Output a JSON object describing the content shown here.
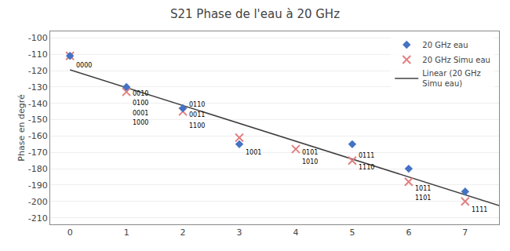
{
  "chart_data": {
    "type": "scatter",
    "title": "S21 Phase de l'eau à 20 GHz",
    "ylabel": "Phase en degré",
    "xlim": [
      -0.35,
      7.6
    ],
    "ylim": [
      -214,
      -96
    ],
    "xticks": [
      0,
      1,
      2,
      3,
      4,
      5,
      6,
      7
    ],
    "yticks": [
      -210,
      -200,
      -190,
      -180,
      -170,
      -160,
      -150,
      -140,
      -130,
      -120,
      -110,
      -100
    ],
    "grid": "y",
    "legend": "upper right",
    "series": [
      {
        "name": "20 GHz eau",
        "type": "scatter",
        "marker": "diamond",
        "color": "#4472c4",
        "x": [
          0,
          1,
          2,
          3,
          5,
          6,
          7
        ],
        "values": [
          -111,
          -130,
          -143,
          -165,
          -165,
          -180,
          -194
        ]
      },
      {
        "name": "20 GHz Simu eau",
        "type": "scatter",
        "marker": "x",
        "color": "#e08080",
        "x": [
          0,
          1,
          2,
          3,
          4,
          5,
          6,
          7
        ],
        "values": [
          -111,
          -133,
          -145,
          -161,
          -168,
          -175,
          -188,
          -200
        ]
      },
      {
        "name": "Linear (20 GHz\nSimu eau)",
        "type": "line",
        "color": "#404040",
        "x": [
          0,
          7.6
        ],
        "values": [
          -119.5,
          -202.5
        ]
      }
    ],
    "annotations": [
      {
        "text": "0000",
        "x": 0,
        "y": -117
      },
      {
        "text": "0010",
        "x": 1,
        "y": -134
      },
      {
        "text": "0100",
        "x": 1,
        "y": -140
      },
      {
        "text": "0001",
        "x": 1,
        "y": -146
      },
      {
        "text": "1000",
        "x": 1,
        "y": -152
      },
      {
        "text": "0110",
        "x": 2,
        "y": -141
      },
      {
        "text": "0011",
        "x": 2,
        "y": -147
      },
      {
        "text": "1100",
        "x": 2,
        "y": -154
      },
      {
        "text": "1001",
        "x": 3,
        "y": -170
      },
      {
        "text": "0101",
        "x": 4,
        "y": -170
      },
      {
        "text": "1010",
        "x": 4,
        "y": -176
      },
      {
        "text": "0111",
        "x": 5,
        "y": -172
      },
      {
        "text": "1110",
        "x": 5,
        "y": -179
      },
      {
        "text": "1011",
        "x": 6,
        "y": -192
      },
      {
        "text": "1101",
        "x": 6,
        "y": -198
      },
      {
        "text": "1111",
        "x": 7,
        "y": -205
      }
    ]
  }
}
